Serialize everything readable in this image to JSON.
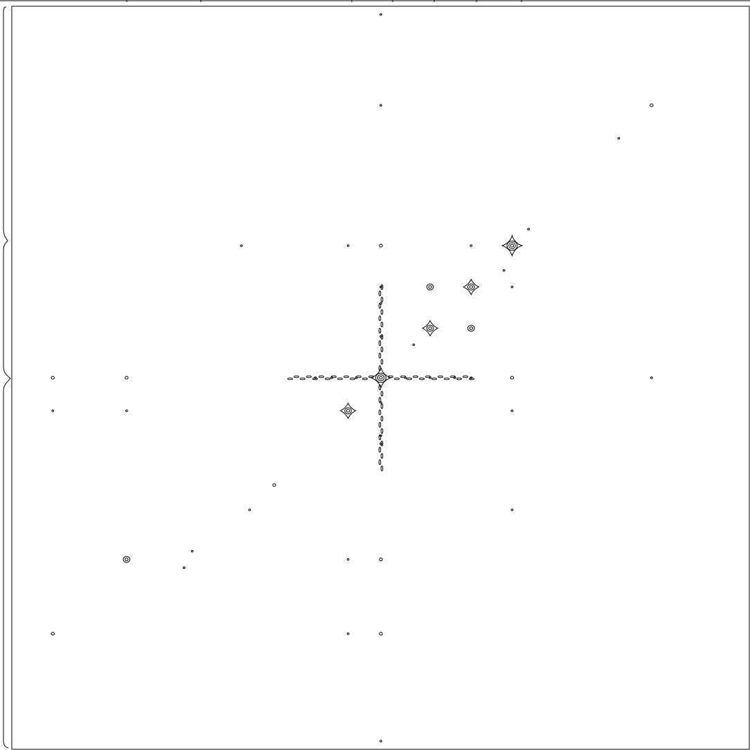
{
  "chart_data": {
    "type": "contour",
    "title": "",
    "xlabel": "",
    "ylabel": "",
    "xlim": [
      -4.5,
      4.5
    ],
    "ylim": [
      -4.5,
      4.5
    ],
    "grid": false,
    "line_color": "#000000",
    "background": "#ffffff",
    "peaks": [
      {
        "x": 0.0,
        "y": 0.0,
        "rings": 3,
        "arms": true
      },
      {
        "x": 1.1,
        "y": 1.1,
        "rings": 2,
        "arms": true
      },
      {
        "x": 0.6,
        "y": 1.1,
        "rings": 2,
        "arms": false
      },
      {
        "x": 0.6,
        "y": 0.6,
        "rings": 2,
        "arms": true
      },
      {
        "x": 1.1,
        "y": 0.6,
        "rings": 2,
        "arms": false
      },
      {
        "x": -0.4,
        "y": -0.4,
        "rings": 2,
        "arms": true
      },
      {
        "x": 1.6,
        "y": 1.6,
        "rings": 3,
        "arms": true
      },
      {
        "x": 1.6,
        "y": 0.0,
        "rings": 1,
        "arms": false
      },
      {
        "x": -3.1,
        "y": -2.2,
        "rings": 2,
        "arms": false
      },
      {
        "x": -3.1,
        "y": 0.0,
        "rings": 1,
        "arms": false
      },
      {
        "x": -4.0,
        "y": 0.0,
        "rings": 1,
        "arms": false
      },
      {
        "x": 0.0,
        "y": 1.6,
        "rings": 1,
        "arms": false
      },
      {
        "x": 0.0,
        "y": -2.2,
        "rings": 1,
        "arms": false
      },
      {
        "x": 0.0,
        "y": -3.1,
        "rings": 1,
        "arms": false
      },
      {
        "x": -4.0,
        "y": -3.1,
        "rings": 1,
        "arms": false
      },
      {
        "x": 3.3,
        "y": 3.3,
        "rings": 1,
        "arms": false
      },
      {
        "x": -1.3,
        "y": -1.3,
        "rings": 1,
        "arms": false
      }
    ],
    "specks": [
      [
        0.0,
        3.3
      ],
      [
        2.9,
        2.9
      ],
      [
        -1.7,
        1.6
      ],
      [
        -0.4,
        1.6
      ],
      [
        0.0,
        1.1
      ],
      [
        1.1,
        1.6
      ],
      [
        1.5,
        1.3
      ],
      [
        1.8,
        1.8
      ],
      [
        1.6,
        1.1
      ],
      [
        0.4,
        0.4
      ],
      [
        1.6,
        -0.4
      ],
      [
        -3.1,
        -0.4
      ],
      [
        -4.0,
        -0.4
      ],
      [
        -1.6,
        -1.6
      ],
      [
        1.6,
        -1.6
      ],
      [
        -0.4,
        -2.2
      ],
      [
        -0.4,
        -3.1
      ],
      [
        -2.3,
        -2.1
      ],
      [
        -2.4,
        -2.3
      ],
      [
        3.3,
        0.0
      ],
      [
        1.1,
        0.0
      ],
      [
        -0.8,
        0.0
      ],
      [
        -0.6,
        0.0
      ],
      [
        0.6,
        0.0
      ],
      [
        0.9,
        0.0
      ],
      [
        0.0,
        0.9
      ],
      [
        0.0,
        -0.7
      ],
      [
        0.0,
        -0.8
      ],
      [
        0.0,
        4.4
      ],
      [
        0.0,
        -4.4
      ],
      [
        0.0,
        0.5
      ],
      [
        0.0,
        -0.3
      ],
      [
        0.3,
        0.0
      ],
      [
        -0.3,
        0.0
      ]
    ]
  }
}
